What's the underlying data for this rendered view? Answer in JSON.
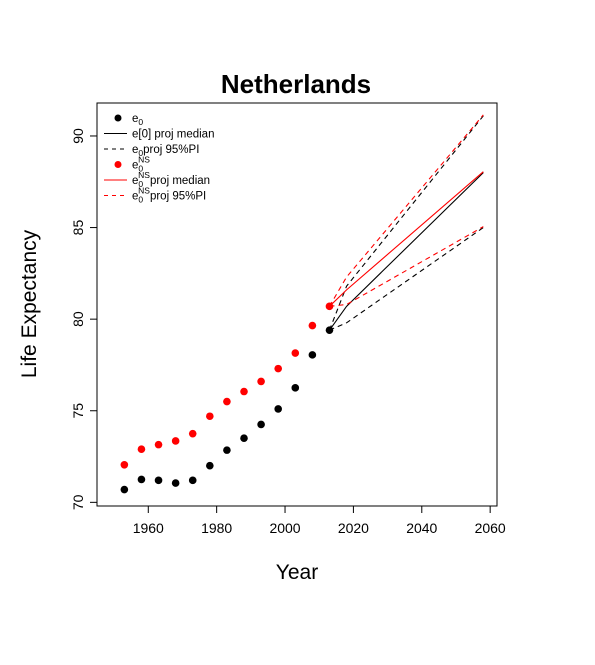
{
  "chart_data": {
    "type": "scatter",
    "title": "Netherlands",
    "xlabel": "Year",
    "ylabel": "Life Expectancy",
    "xlim": [
      1945,
      2062
    ],
    "ylim": [
      69.8,
      91.8
    ],
    "x_ticks": [
      1960,
      1980,
      2000,
      2020,
      2040,
      2060
    ],
    "y_ticks": [
      70,
      75,
      80,
      85,
      90
    ],
    "grid": false,
    "legend_position": "top-left",
    "legend": [
      {
        "label": "e0",
        "sub": "0",
        "sup": "",
        "base": "e",
        "suffix": "",
        "symbol": "point",
        "color": "#000000"
      },
      {
        "label": "e[0] proj median",
        "plain": "e[0] proj median",
        "symbol": "solid",
        "color": "#000000"
      },
      {
        "label": "e0proj 95%PI",
        "base": "e",
        "sub": "0",
        "sup": "",
        "suffix": "proj 95%PI",
        "symbol": "dashed",
        "color": "#000000"
      },
      {
        "label": "e0NS",
        "base": "e",
        "sub": "0",
        "sup": "NS",
        "suffix": "",
        "symbol": "point",
        "color": "#ff0000"
      },
      {
        "label": "e0NSproj median",
        "base": "e",
        "sub": "0",
        "sup": "NS",
        "suffix": "proj median",
        "symbol": "solid",
        "color": "#ff0000"
      },
      {
        "label": "e0NSproj 95%PI",
        "base": "e",
        "sub": "0",
        "sup": "NS",
        "suffix": "proj 95%PI",
        "symbol": "dashed",
        "color": "#ff0000"
      }
    ],
    "series": [
      {
        "kind": "points",
        "color": "#000000",
        "x": [
          1953,
          1958,
          1963,
          1968,
          1973,
          1978,
          1983,
          1988,
          1993,
          1998,
          2003,
          2008,
          2013
        ],
        "y": [
          70.7,
          71.25,
          71.2,
          71.05,
          71.2,
          72.0,
          72.85,
          73.5,
          74.25,
          75.1,
          76.25,
          78.05,
          79.4
        ]
      },
      {
        "kind": "points",
        "color": "#ff0000",
        "x": [
          1953,
          1958,
          1963,
          1968,
          1973,
          1978,
          1983,
          1988,
          1993,
          1998,
          2003,
          2008,
          2013
        ],
        "y": [
          72.05,
          72.9,
          73.15,
          73.35,
          73.75,
          74.7,
          75.5,
          76.05,
          76.6,
          77.3,
          78.15,
          79.65,
          80.7
        ]
      },
      {
        "kind": "line",
        "style": "solid",
        "color": "#000000",
        "x": [
          2013,
          2018,
          2058
        ],
        "y": [
          79.4,
          80.7,
          88.0
        ]
      },
      {
        "kind": "line",
        "style": "dashed",
        "color": "#000000",
        "x": [
          2013,
          2018,
          2058
        ],
        "y": [
          79.4,
          81.8,
          91.1
        ]
      },
      {
        "kind": "line",
        "style": "dashed",
        "color": "#000000",
        "x": [
          2013,
          2018,
          2058
        ],
        "y": [
          79.4,
          79.8,
          85.0
        ]
      },
      {
        "kind": "line",
        "style": "solid",
        "color": "#ff0000",
        "x": [
          2013,
          2018,
          2058
        ],
        "y": [
          80.7,
          81.6,
          88.05
        ]
      },
      {
        "kind": "line",
        "style": "dashed",
        "color": "#ff0000",
        "x": [
          2013,
          2018,
          2058
        ],
        "y": [
          80.7,
          82.3,
          91.15
        ]
      },
      {
        "kind": "line",
        "style": "dashed",
        "color": "#ff0000",
        "x": [
          2013,
          2018,
          2058
        ],
        "y": [
          80.7,
          80.8,
          85.05
        ]
      }
    ]
  }
}
